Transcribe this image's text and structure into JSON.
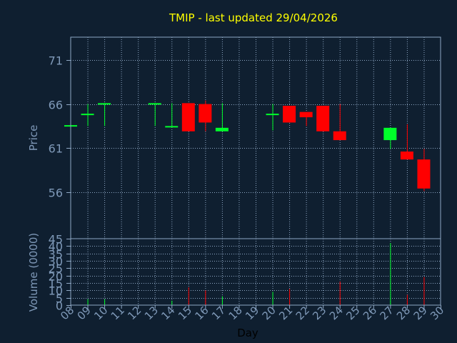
{
  "colors": {
    "background": "#0f1f30",
    "frame": "#8ea7c4",
    "grid": "#8ea7c4",
    "title": "#ffff00",
    "axis_text": "#7f99b8",
    "up": "#00ff2a",
    "down": "#ff0000",
    "day_label": "#000000"
  },
  "chart_data": {
    "type": "candlestick",
    "title": "TMIP - last updated 29/04/2026",
    "grid": true,
    "price_panel": {
      "ylabel": "Price",
      "ylim": [
        50.7,
        73.6
      ],
      "yticks": [
        "71",
        "66",
        "61",
        "56"
      ],
      "ytick_values": [
        71,
        66,
        61,
        56
      ],
      "candles": [
        {
          "day": 8,
          "open": 63.6,
          "high": 63.6,
          "low": 63.6,
          "close": 63.6
        },
        {
          "day": 9,
          "open": 64.9,
          "high": 66.0,
          "low": 63.5,
          "close": 64.9
        },
        {
          "day": 10,
          "open": 66.1,
          "high": 66.1,
          "low": 63.5,
          "close": 66.1
        },
        {
          "day": 13,
          "open": 66.1,
          "high": 66.1,
          "low": 63.5,
          "close": 66.1
        },
        {
          "day": 14,
          "open": 63.5,
          "high": 66.1,
          "low": 63.5,
          "close": 63.5
        },
        {
          "day": 15,
          "open": 66.1,
          "high": 66.1,
          "low": 62.9,
          "close": 62.9
        },
        {
          "day": 16,
          "open": 66.0,
          "high": 66.4,
          "low": 62.9,
          "close": 63.9
        },
        {
          "day": 17,
          "open": 62.9,
          "high": 66.1,
          "low": 62.9,
          "close": 63.3
        },
        {
          "day": 20,
          "open": 64.9,
          "high": 66.0,
          "low": 63.0,
          "close": 64.9
        },
        {
          "day": 21,
          "open": 65.8,
          "high": 65.8,
          "low": 63.9,
          "close": 63.9
        },
        {
          "day": 22,
          "open": 65.1,
          "high": 65.1,
          "low": 63.5,
          "close": 64.5
        },
        {
          "day": 23,
          "open": 65.8,
          "high": 65.8,
          "low": 62.9,
          "close": 62.9
        },
        {
          "day": 24,
          "open": 62.9,
          "high": 66.0,
          "low": 61.9,
          "close": 61.9
        },
        {
          "day": 27,
          "open": 61.9,
          "high": 63.3,
          "low": 60.9,
          "close": 63.3
        },
        {
          "day": 28,
          "open": 60.6,
          "high": 63.7,
          "low": 59.7,
          "close": 59.7
        },
        {
          "day": 29,
          "open": 59.7,
          "high": 60.9,
          "low": 56.1,
          "close": 56.4
        }
      ]
    },
    "volume_panel": {
      "ylabel": "Volume (0000)",
      "ylim": [
        0,
        45
      ],
      "yticks": [
        "45",
        "40",
        "35",
        "30",
        "25",
        "20",
        "15",
        "10",
        "5",
        "0"
      ],
      "ytick_values": [
        45,
        40,
        35,
        30,
        25,
        20,
        15,
        10,
        5,
        0
      ],
      "bars": [
        {
          "day": 9,
          "volume": 4,
          "direction": "up"
        },
        {
          "day": 10,
          "volume": 4,
          "direction": "up"
        },
        {
          "day": 14,
          "volume": 3,
          "direction": "up"
        },
        {
          "day": 15,
          "volume": 12,
          "direction": "down"
        },
        {
          "day": 16,
          "volume": 10,
          "direction": "down"
        },
        {
          "day": 17,
          "volume": 6,
          "direction": "up"
        },
        {
          "day": 20,
          "volume": 9,
          "direction": "up"
        },
        {
          "day": 21,
          "volume": 11,
          "direction": "down"
        },
        {
          "day": 24,
          "volume": 16,
          "direction": "down"
        },
        {
          "day": 27,
          "volume": 42,
          "direction": "up"
        },
        {
          "day": 28,
          "volume": 7,
          "direction": "down"
        },
        {
          "day": 29,
          "volume": 19,
          "direction": "down"
        }
      ]
    },
    "x_axis": {
      "label": "Day",
      "range": [
        8,
        30
      ],
      "ticks": [
        "08",
        "09",
        "10",
        "11",
        "12",
        "13",
        "14",
        "15",
        "16",
        "17",
        "18",
        "19",
        "20",
        "21",
        "22",
        "23",
        "24",
        "25",
        "26",
        "27",
        "28",
        "29",
        "30"
      ]
    }
  }
}
